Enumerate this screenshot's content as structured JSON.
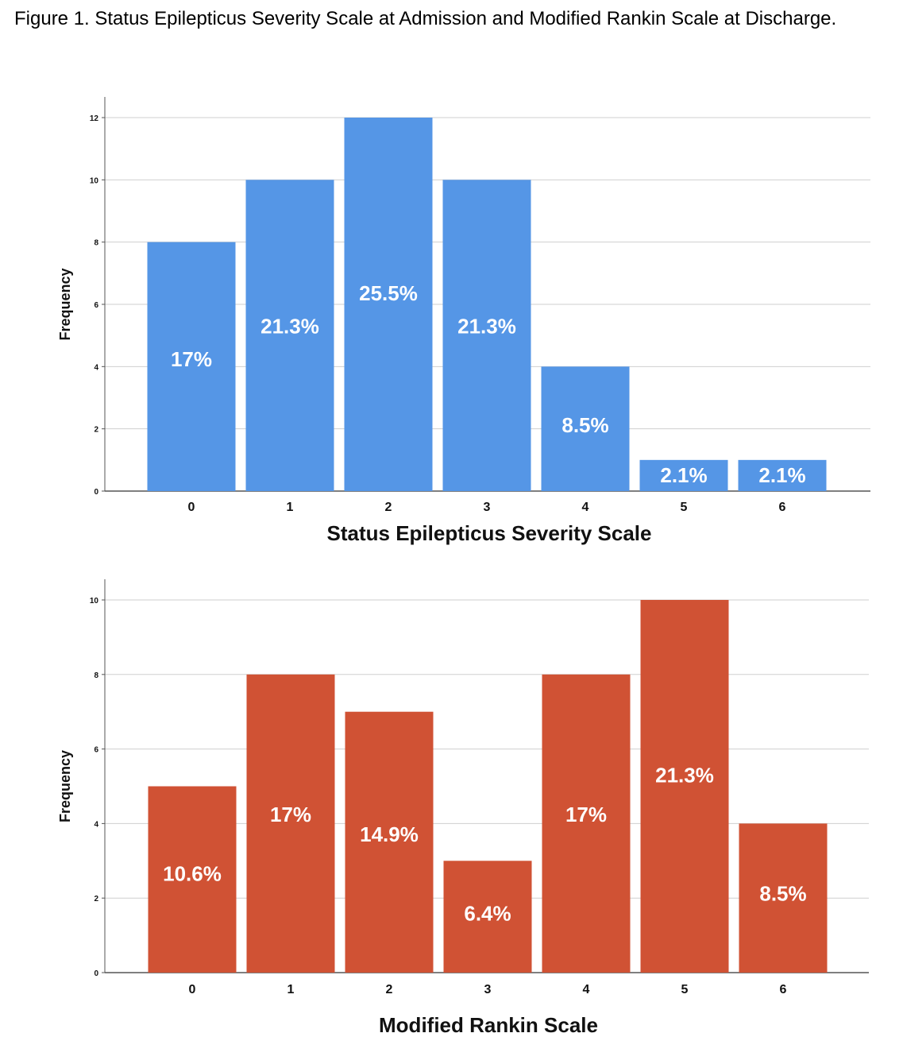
{
  "caption": "Figure 1. Status Epilepticus Severity Scale at Admission and Modified Rankin Scale at Discharge.",
  "chart_data": [
    {
      "type": "bar",
      "categories": [
        "0",
        "1",
        "2",
        "3",
        "4",
        "5",
        "6"
      ],
      "values": [
        8,
        10,
        12,
        10,
        4,
        1,
        1
      ],
      "data_labels": [
        "17%",
        "21.3%",
        "25.5%",
        "21.3%",
        "8.5%",
        "2.1%",
        "2.1%"
      ],
      "xlabel": "Status Epilepticus Severity Scale",
      "ylabel": "Frequency",
      "ylim": [
        0,
        12
      ],
      "yticks": [
        "0",
        "2",
        "4",
        "6",
        "8",
        "10",
        "12"
      ],
      "grid": true,
      "color": "#5596e6"
    },
    {
      "type": "bar",
      "categories": [
        "0",
        "1",
        "2",
        "3",
        "4",
        "5",
        "6"
      ],
      "values": [
        5,
        8,
        7,
        3,
        8,
        10,
        4
      ],
      "data_labels": [
        "10.6%",
        "17%",
        "14.9%",
        "6.4%",
        "17%",
        "21.3%",
        "8.5%"
      ],
      "xlabel": "Modified Rankin Scale",
      "ylabel": "Frequency",
      "ylim": [
        0,
        10
      ],
      "yticks": [
        "0",
        "2",
        "4",
        "6",
        "8",
        "10"
      ],
      "grid": true,
      "color": "#d05234"
    }
  ]
}
